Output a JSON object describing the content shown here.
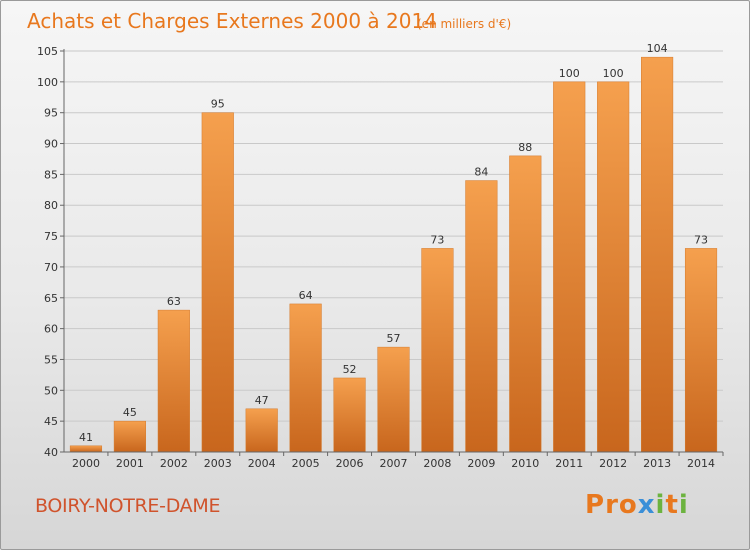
{
  "header": {
    "title": "Achats et Charges Externes 2000 à 2014",
    "unit": "(en milliers d'€)"
  },
  "footer": {
    "commune": "BOIRY-NOTRE-DAME",
    "logo": "Proxiti"
  },
  "colors": {
    "title": "#e8781e",
    "commune": "#d0532c",
    "bar_light": "#f5a04e",
    "bar_dark": "#c8661d",
    "logo_letters": [
      "#e8781e",
      "#e8781e",
      "#e8781e",
      "#3a8fd8",
      "#6cb33f",
      "#e8781e",
      "#6cb33f"
    ]
  },
  "chart_data": {
    "type": "bar",
    "title": "Achats et Charges Externes 2000 à 2014",
    "subtitle": "(en milliers d'€)",
    "categories": [
      "2000",
      "2001",
      "2002",
      "2003",
      "2004",
      "2005",
      "2006",
      "2007",
      "2008",
      "2009",
      "2010",
      "2011",
      "2012",
      "2013",
      "2014"
    ],
    "values": [
      41,
      45,
      63,
      95,
      47,
      64,
      52,
      57,
      73,
      84,
      88,
      100,
      100,
      104,
      73
    ],
    "ylim": [
      40,
      105
    ],
    "yticks": [
      40,
      45,
      50,
      55,
      60,
      65,
      70,
      75,
      80,
      85,
      90,
      95,
      100,
      105
    ],
    "grid": true,
    "legend": "none"
  }
}
